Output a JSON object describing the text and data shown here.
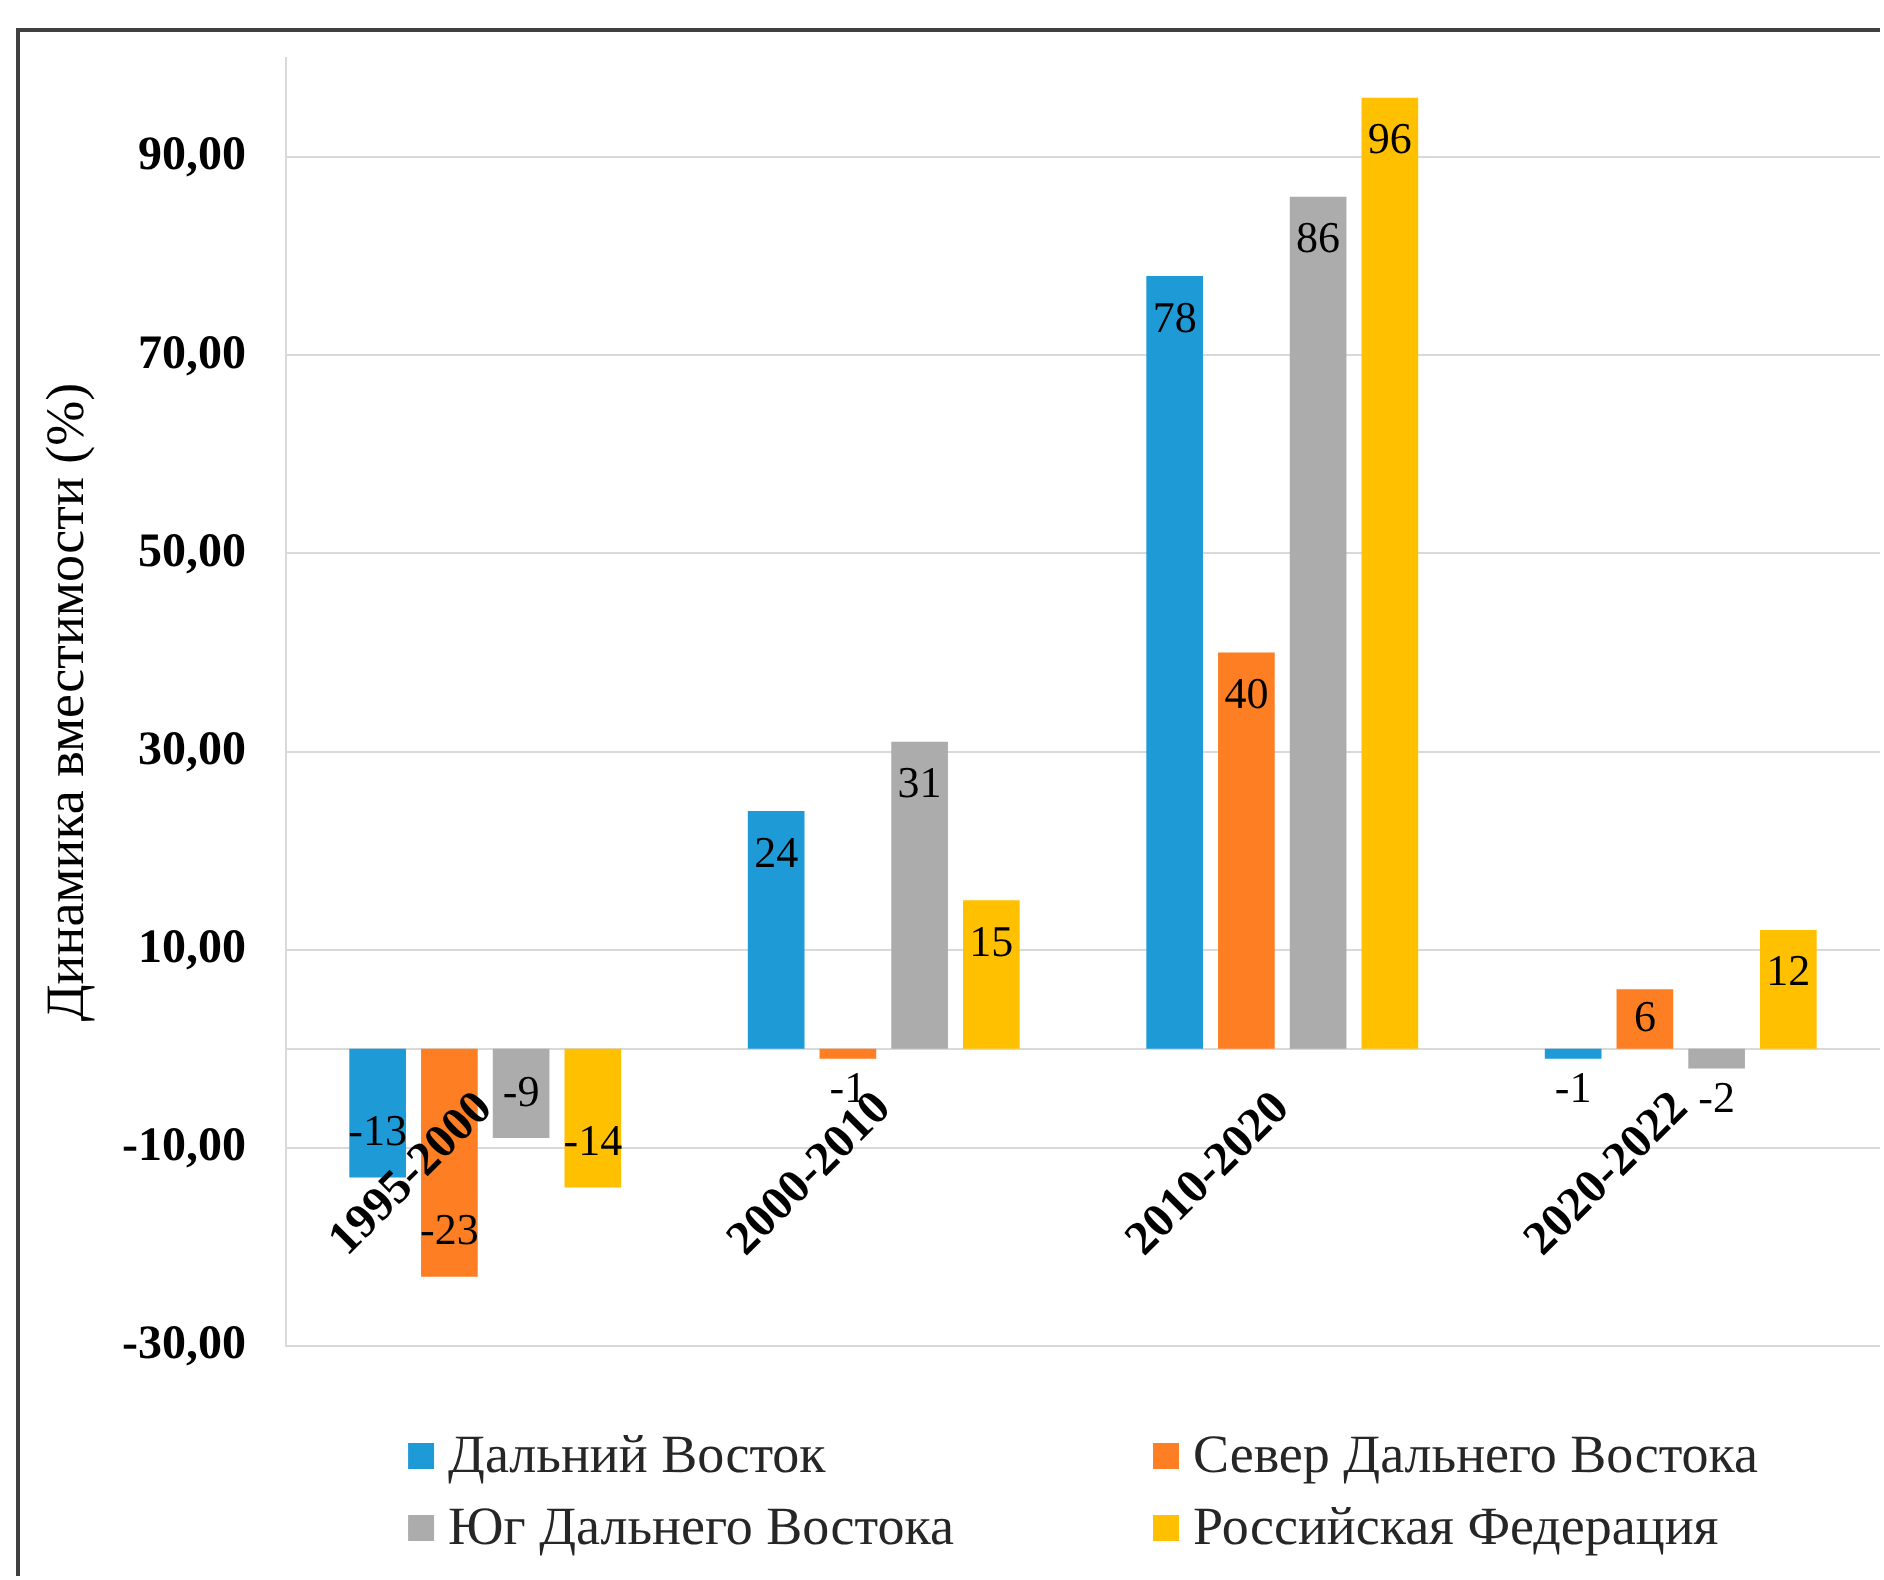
{
  "chart_data": {
    "type": "bar",
    "ylabel": "Динамика вместимости (%)",
    "categories": [
      "1995-2000",
      "2000-2010",
      "2010-2020",
      "2020-2022"
    ],
    "series": [
      {
        "name": "Дальний Восток",
        "color": "#1e9bd7",
        "values": [
          -13,
          24,
          78,
          -1
        ]
      },
      {
        "name": "Север Дальнего Востока",
        "color": "#fd7e23",
        "values": [
          -23,
          -1,
          40,
          6
        ]
      },
      {
        "name": "Юг Дальнего Востока",
        "color": "#acacac",
        "values": [
          -9,
          31,
          86,
          -2
        ]
      },
      {
        "name": "Российская Федерация",
        "color": "#ffc000",
        "values": [
          -14,
          15,
          96,
          12
        ]
      }
    ],
    "ylim": [
      -30,
      100
    ],
    "yticks": [
      {
        "value": -30,
        "label": "-30,00"
      },
      {
        "value": -10,
        "label": "-10,00"
      },
      {
        "value": 10,
        "label": "10,00"
      },
      {
        "value": 30,
        "label": "30,00"
      },
      {
        "value": 50,
        "label": "50,00"
      },
      {
        "value": 70,
        "label": "70,00"
      },
      {
        "value": 90,
        "label": "90,00"
      }
    ],
    "grid": "y",
    "legend": "bottom",
    "data_labels": true
  }
}
